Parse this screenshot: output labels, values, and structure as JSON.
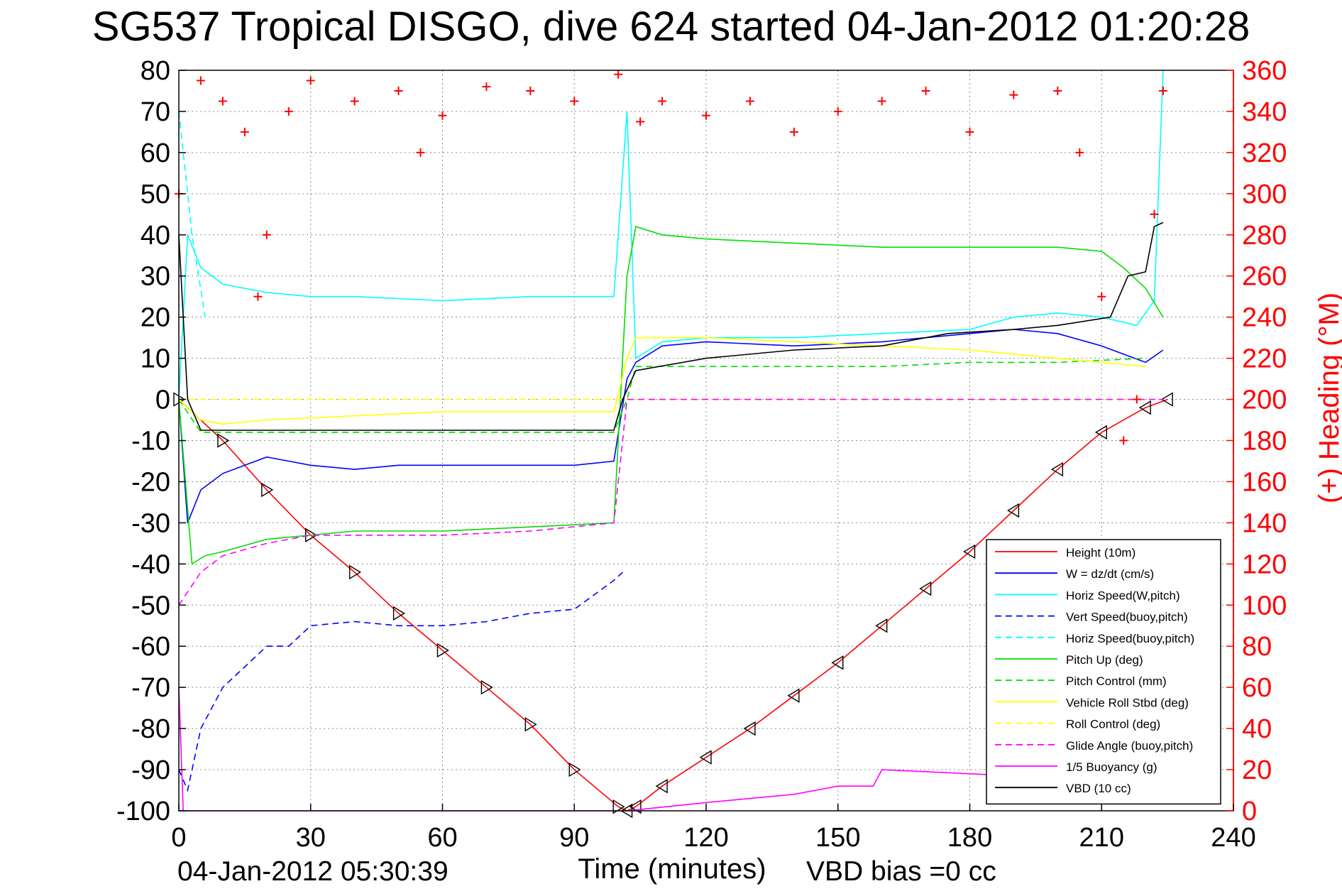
{
  "title": "SG537 Tropical DISGO, dive 624 started 04-Jan-2012 01:20:28",
  "footer": {
    "timestamp": "04-Jan-2012 05:30:39",
    "vbd_bias": "VBD bias =0 cc"
  },
  "colors": {
    "height": "#ff0000",
    "w": "#0000ff",
    "horiz_speed": "#00ffff",
    "pitch": "#00dd00",
    "roll": "#ffff00",
    "glide": "#ff00ff",
    "vbd": "#000000",
    "heading": "#ff0000"
  },
  "chart_data": {
    "type": "line",
    "xlabel": "Time (minutes)",
    "ylabel_right": "(+) Heading (°M)",
    "xlim": [
      0,
      240
    ],
    "ylim": [
      -100,
      80
    ],
    "ylim_right": [
      0,
      360
    ],
    "xticks": [
      0,
      30,
      60,
      90,
      120,
      150,
      180,
      210,
      240
    ],
    "yticks": [
      -100,
      -90,
      -80,
      -70,
      -60,
      -50,
      -40,
      -30,
      -20,
      -10,
      0,
      10,
      20,
      30,
      40,
      50,
      60,
      70,
      80
    ],
    "yticks_right": [
      0,
      20,
      40,
      60,
      80,
      100,
      120,
      140,
      160,
      180,
      200,
      220,
      240,
      260,
      280,
      300,
      320,
      340,
      360
    ],
    "grid": true,
    "legend_position": "bottom-right",
    "series": [
      {
        "name": "Height (10m)",
        "style": "solid",
        "color": "#ff0000",
        "x": [
          0,
          10,
          20,
          30,
          40,
          50,
          60,
          70,
          80,
          90,
          100,
          102,
          104,
          110,
          120,
          130,
          140,
          150,
          160,
          170,
          180,
          190,
          200,
          210,
          220,
          225
        ],
        "y": [
          0,
          -10,
          -22,
          -33,
          -42,
          -52,
          -61,
          -70,
          -79,
          -90,
          -99,
          -100,
          -99,
          -94,
          -87,
          -80,
          -72,
          -64,
          -55,
          -46,
          -37,
          -27,
          -17,
          -8,
          -2,
          0
        ]
      },
      {
        "name": "W = dz/dt (cm/s)",
        "style": "solid",
        "color": "#0000ff",
        "x": [
          0,
          2,
          5,
          10,
          15,
          20,
          25,
          30,
          40,
          50,
          60,
          70,
          80,
          90,
          99,
          102,
          104,
          110,
          120,
          140,
          160,
          180,
          190,
          200,
          210,
          220,
          224
        ],
        "y": [
          0,
          -30,
          -22,
          -18,
          -16,
          -14,
          -15,
          -16,
          -17,
          -16,
          -16,
          -16,
          -16,
          -16,
          -15,
          5,
          9,
          13,
          14,
          13,
          14,
          16,
          17,
          16,
          13,
          9,
          12
        ]
      },
      {
        "name": "Horiz Speed(W,pitch)",
        "style": "solid",
        "color": "#00ffff",
        "x": [
          0,
          2,
          5,
          10,
          20,
          30,
          40,
          60,
          80,
          99,
          102,
          104,
          110,
          120,
          140,
          160,
          180,
          190,
          200,
          210,
          218,
          222,
          224
        ],
        "y": [
          0,
          40,
          32,
          28,
          26,
          25,
          25,
          24,
          25,
          25,
          70,
          10,
          14,
          15,
          15,
          16,
          17,
          20,
          21,
          20,
          18,
          24,
          80
        ]
      },
      {
        "name": "Vert Speed(buoy,pitch)",
        "style": "dashed",
        "color": "#0000ff",
        "x": [
          0,
          2,
          5,
          10,
          15,
          20,
          25,
          30,
          40,
          50,
          60,
          70,
          80,
          90,
          99,
          101
        ],
        "y": [
          -90,
          -95,
          -80,
          -70,
          -65,
          -60,
          -60,
          -55,
          -54,
          -55,
          -55,
          -54,
          -52,
          -51,
          -44,
          -42
        ]
      },
      {
        "name": "Horiz Speed(buoy,pitch)",
        "style": "dashed",
        "color": "#00ffff",
        "x": [
          0,
          3,
          6
        ],
        "y": [
          70,
          40,
          20
        ]
      },
      {
        "name": "Pitch Up (deg)",
        "style": "solid",
        "color": "#00dd00",
        "x": [
          0,
          3,
          6,
          10,
          20,
          30,
          40,
          60,
          80,
          99,
          102,
          104,
          110,
          120,
          140,
          160,
          180,
          200,
          210,
          215,
          220,
          224
        ],
        "y": [
          0,
          -40,
          -38,
          -37,
          -34,
          -33,
          -32,
          -32,
          -31,
          -30,
          30,
          42,
          40,
          39,
          38,
          37,
          37,
          37,
          36,
          32,
          27,
          20
        ]
      },
      {
        "name": "Pitch Control (mm)",
        "style": "dashed",
        "color": "#00dd00",
        "x": [
          0,
          5,
          20,
          40,
          60,
          80,
          99,
          102,
          104,
          120,
          140,
          160,
          180,
          200,
          220
        ],
        "y": [
          0,
          -8,
          -8,
          -8,
          -8,
          -8,
          -8,
          0,
          8,
          8,
          8,
          8,
          9,
          9,
          10
        ]
      },
      {
        "name": "Vehicle Roll Stbd (deg)",
        "style": "solid",
        "color": "#ffff00",
        "x": [
          0,
          5,
          10,
          20,
          40,
          60,
          80,
          99,
          102,
          104,
          120,
          140,
          160,
          180,
          200,
          220
        ],
        "y": [
          0,
          -5,
          -6,
          -5,
          -4,
          -3,
          -3,
          -3,
          10,
          15,
          15,
          14,
          13,
          12,
          10,
          8
        ]
      },
      {
        "name": "Roll Control (deg)",
        "style": "dashed",
        "color": "#ffff00",
        "x": [
          0,
          5,
          20,
          40,
          60,
          80,
          99,
          102,
          104,
          120,
          140,
          160,
          180,
          200,
          220
        ],
        "y": [
          0,
          0,
          0,
          0,
          0,
          0,
          0,
          0,
          0,
          0,
          0,
          0,
          0,
          0,
          0
        ]
      },
      {
        "name": "Glide Angle (buoy,pitch)",
        "style": "dashed",
        "color": "#ff00ff",
        "x": [
          0,
          5,
          10,
          20,
          30,
          40,
          60,
          80,
          99,
          102,
          104,
          140,
          180,
          224
        ],
        "y": [
          -50,
          -42,
          -38,
          -35,
          -33,
          -33,
          -33,
          -32,
          -30,
          0,
          0,
          0,
          0,
          0
        ]
      },
      {
        "name": "1/5 Buoyancy (g)",
        "style": "solid",
        "color": "#ff00ff",
        "x": [
          0,
          1,
          102,
          120,
          140,
          150,
          158,
          160,
          180,
          200,
          215
        ],
        "y": [
          -70,
          -100,
          -100,
          -98,
          -96,
          -94,
          -94,
          -90,
          -91,
          -92,
          -93
        ]
      },
      {
        "name": "VBD (10 cc)",
        "style": "solid",
        "color": "#000000",
        "x": [
          0,
          2,
          5,
          30,
          60,
          99,
          101,
          104,
          120,
          140,
          160,
          175,
          190,
          200,
          212,
          216,
          220,
          222,
          224
        ],
        "y": [
          40,
          0,
          -7.5,
          -7.5,
          -7.5,
          -7.5,
          0,
          7,
          10,
          12,
          13,
          16,
          17,
          18,
          20,
          30,
          31,
          42,
          43
        ]
      },
      {
        "name": "(+) Heading",
        "axis": "right",
        "style": "markers-plus",
        "color": "#ff0000",
        "x": [
          0,
          5,
          10,
          15,
          18,
          20,
          25,
          30,
          40,
          50,
          55,
          60,
          70,
          80,
          90,
          100,
          105,
          110,
          120,
          130,
          140,
          150,
          160,
          170,
          180,
          190,
          200,
          205,
          210,
          215,
          218,
          222,
          224
        ],
        "y": [
          300,
          355,
          345,
          330,
          250,
          280,
          340,
          355,
          345,
          350,
          320,
          338,
          352,
          350,
          345,
          358,
          335,
          345,
          338,
          345,
          330,
          340,
          345,
          350,
          330,
          348,
          350,
          320,
          250,
          180,
          200,
          290,
          350
        ]
      }
    ]
  }
}
